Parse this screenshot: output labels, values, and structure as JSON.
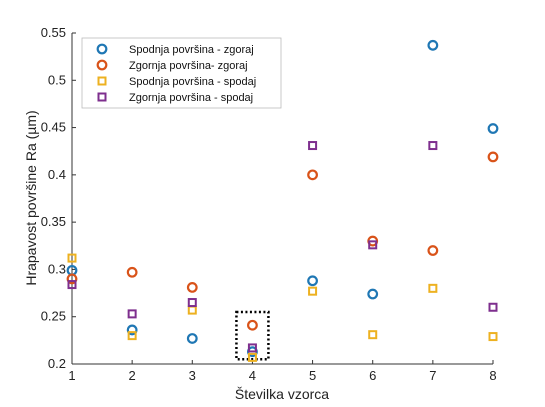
{
  "chart_data": {
    "type": "scatter",
    "title": "",
    "xlabel": "Številka vzorca",
    "ylabel": "Hrapavost površine Ra (µm)",
    "xlim": [
      1,
      8
    ],
    "ylim": [
      0.2,
      0.55
    ],
    "xticks": [
      "1",
      "2",
      "3",
      "4",
      "5",
      "6",
      "7",
      "8"
    ],
    "yticks": [
      "0.2",
      "0.25",
      "0.3",
      "0.35",
      "0.4",
      "0.45",
      "0.5",
      "0.55"
    ],
    "grid": false,
    "legend_position": "top-left",
    "highlight_box": {
      "x": 4,
      "y_range": [
        0.205,
        0.255
      ],
      "style": "dotted"
    },
    "series": [
      {
        "name": "Spodnja površina - zgoraj",
        "marker": "circle",
        "color": "#1f77b4",
        "x": [
          1,
          2,
          3,
          4,
          5,
          6,
          7,
          8
        ],
        "y": [
          0.299,
          0.236,
          0.227,
          0.213,
          0.288,
          0.274,
          0.537,
          0.449
        ]
      },
      {
        "name": "Zgornja površina- zgoraj",
        "marker": "circle",
        "color": "#d95319",
        "x": [
          1,
          2,
          3,
          4,
          5,
          6,
          7,
          8
        ],
        "y": [
          0.29,
          0.297,
          0.281,
          0.241,
          0.4,
          0.33,
          0.32,
          0.419
        ]
      },
      {
        "name": "Spodnja površina - spodaj",
        "marker": "square",
        "color": "#edb120",
        "x": [
          1,
          2,
          3,
          4,
          5,
          6,
          7,
          8
        ],
        "y": [
          0.312,
          0.23,
          0.257,
          0.207,
          0.277,
          0.231,
          0.28,
          0.229
        ]
      },
      {
        "name": "Zgornja površina - spodaj",
        "marker": "square",
        "color": "#7e2f8e",
        "x": [
          1,
          2,
          3,
          4,
          5,
          6,
          7,
          8
        ],
        "y": [
          0.284,
          0.253,
          0.265,
          0.217,
          0.431,
          0.326,
          0.431,
          0.26
        ]
      }
    ]
  }
}
